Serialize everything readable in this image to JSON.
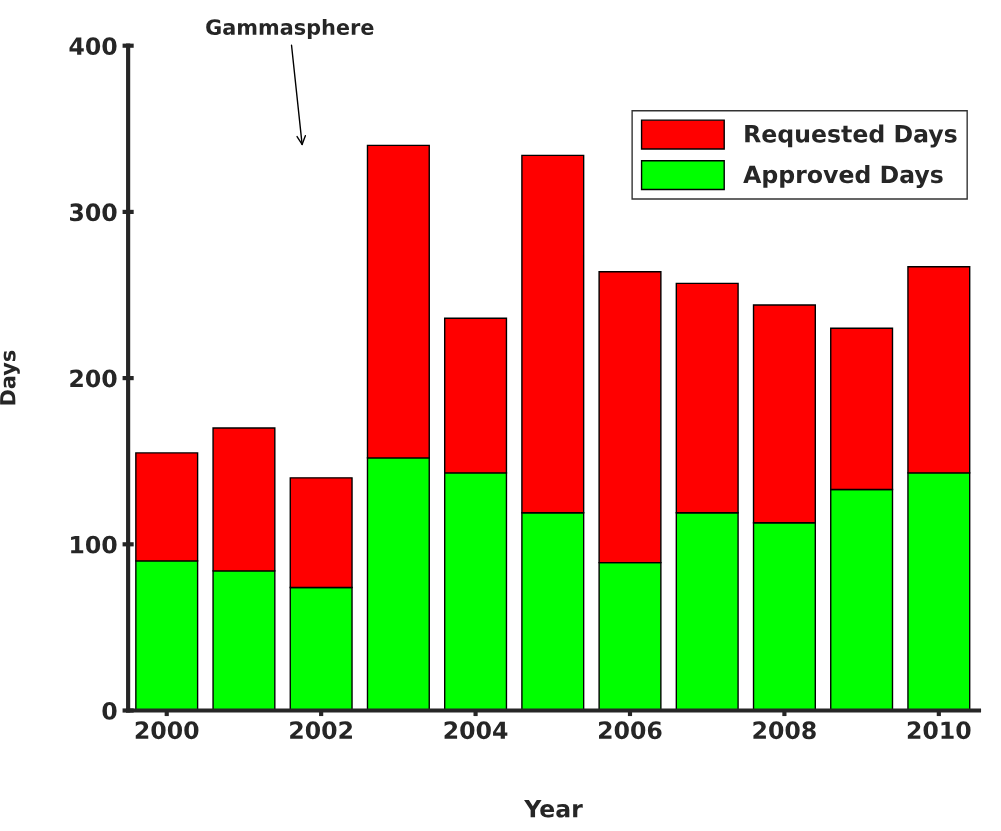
{
  "chart_data": {
    "type": "bar",
    "stacked": true,
    "xlabel": "Year",
    "ylabel": "Days",
    "x": [
      2000,
      2001,
      2002,
      2003,
      2004,
      2005,
      2006,
      2007,
      2008,
      2009,
      2010
    ],
    "series": [
      {
        "name": "Approved Days",
        "color": "#00ff00",
        "values": [
          90,
          84,
          74,
          152,
          143,
          119,
          89,
          119,
          113,
          133,
          143
        ]
      },
      {
        "name": "Requested Days",
        "color": "#ff0000",
        "values": [
          65,
          86,
          66,
          188,
          93,
          215,
          175,
          138,
          131,
          97,
          124
        ]
      }
    ],
    "xlim": [
      1999.5,
      2010.52
    ],
    "xticks": [
      2000,
      2002,
      2004,
      2006,
      2008,
      2010
    ],
    "ylim": [
      0,
      400
    ],
    "yticks": [
      0,
      100,
      200,
      300,
      400
    ],
    "annotations": [
      "Gammasphere"
    ],
    "legend": "top right",
    "grid": false
  }
}
